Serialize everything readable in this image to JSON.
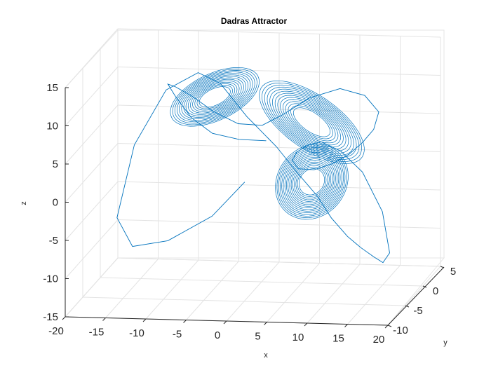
{
  "chart_data": {
    "type": "line",
    "title": "Dadras Attractor",
    "xlabel": "x",
    "ylabel": "y",
    "zlabel": "z",
    "xlim": [
      -20,
      20
    ],
    "ylim": [
      -10,
      5
    ],
    "zlim": [
      -15,
      15
    ],
    "x_ticks": [
      "-20",
      "-15",
      "-10",
      "-5",
      "0",
      "5",
      "10",
      "15",
      "20"
    ],
    "y_ticks": [
      "-10",
      "-5",
      "0",
      "5"
    ],
    "z_ticks": [
      "-15",
      "-10",
      "-5",
      "0",
      "5",
      "10",
      "15"
    ],
    "grid": true,
    "series": [
      {
        "line_color": "#0072BD",
        "x": [
          -2.1,
          -6.5,
          -12.5,
          -17.4,
          -19.5,
          -17.0,
          -12.5,
          -8.0,
          -5.0,
          -1.5,
          2.5,
          5.5,
          8.2,
          10.2,
          12.5,
          14.5,
          16.5,
          18.0,
          19.0,
          17.8,
          14.8,
          11.5,
          8.6,
          6.5,
          4.7,
          3.8,
          4.2,
          5.8,
          7.8,
          9.6,
          11.2,
          12.8,
          14.0,
          13.0,
          10.5,
          7.0,
          3.5,
          0.5,
          -3.0,
          -6.5,
          -9.5,
          -11.8,
          -12.5,
          -11.0,
          -8.5,
          -5.5,
          -2.0,
          1.0
        ],
        "y": [
          0.0,
          0.8,
          2.0,
          3.2,
          3.6,
          2.8,
          1.5,
          0.3,
          -0.3,
          -0.8,
          -1.5,
          -2.3,
          -3.0,
          -3.6,
          -4.3,
          -5.1,
          -6.0,
          -6.8,
          -7.2,
          -6.5,
          -5.3,
          -4.0,
          -2.8,
          -1.8,
          -0.8,
          0.0,
          0.8,
          1.6,
          2.3,
          2.8,
          3.0,
          2.5,
          1.2,
          -0.5,
          -1.8,
          -2.4,
          -2.0,
          -1.0,
          0.2,
          1.2,
          2.0,
          2.4,
          2.0,
          0.8,
          -0.5,
          -1.4,
          -1.8,
          -1.0
        ],
        "z": [
          -2.0,
          -7.0,
          -11.0,
          -12.5,
          -9.0,
          1.0,
          9.0,
          12.0,
          11.0,
          7.0,
          3.5,
          0.5,
          -2.0,
          -4.5,
          -6.5,
          -7.5,
          -8.2,
          -8.5,
          -7.0,
          -2.0,
          2.5,
          4.5,
          5.0,
          4.0,
          2.5,
          1.0,
          -0.5,
          -1.0,
          -0.5,
          0.5,
          2.0,
          4.0,
          7.0,
          10.0,
          11.5,
          10.5,
          8.0,
          6.0,
          5.5,
          6.5,
          8.0,
          9.0,
          9.5,
          8.5,
          6.5,
          5.0,
          4.5,
          4.0
        ]
      }
    ]
  }
}
